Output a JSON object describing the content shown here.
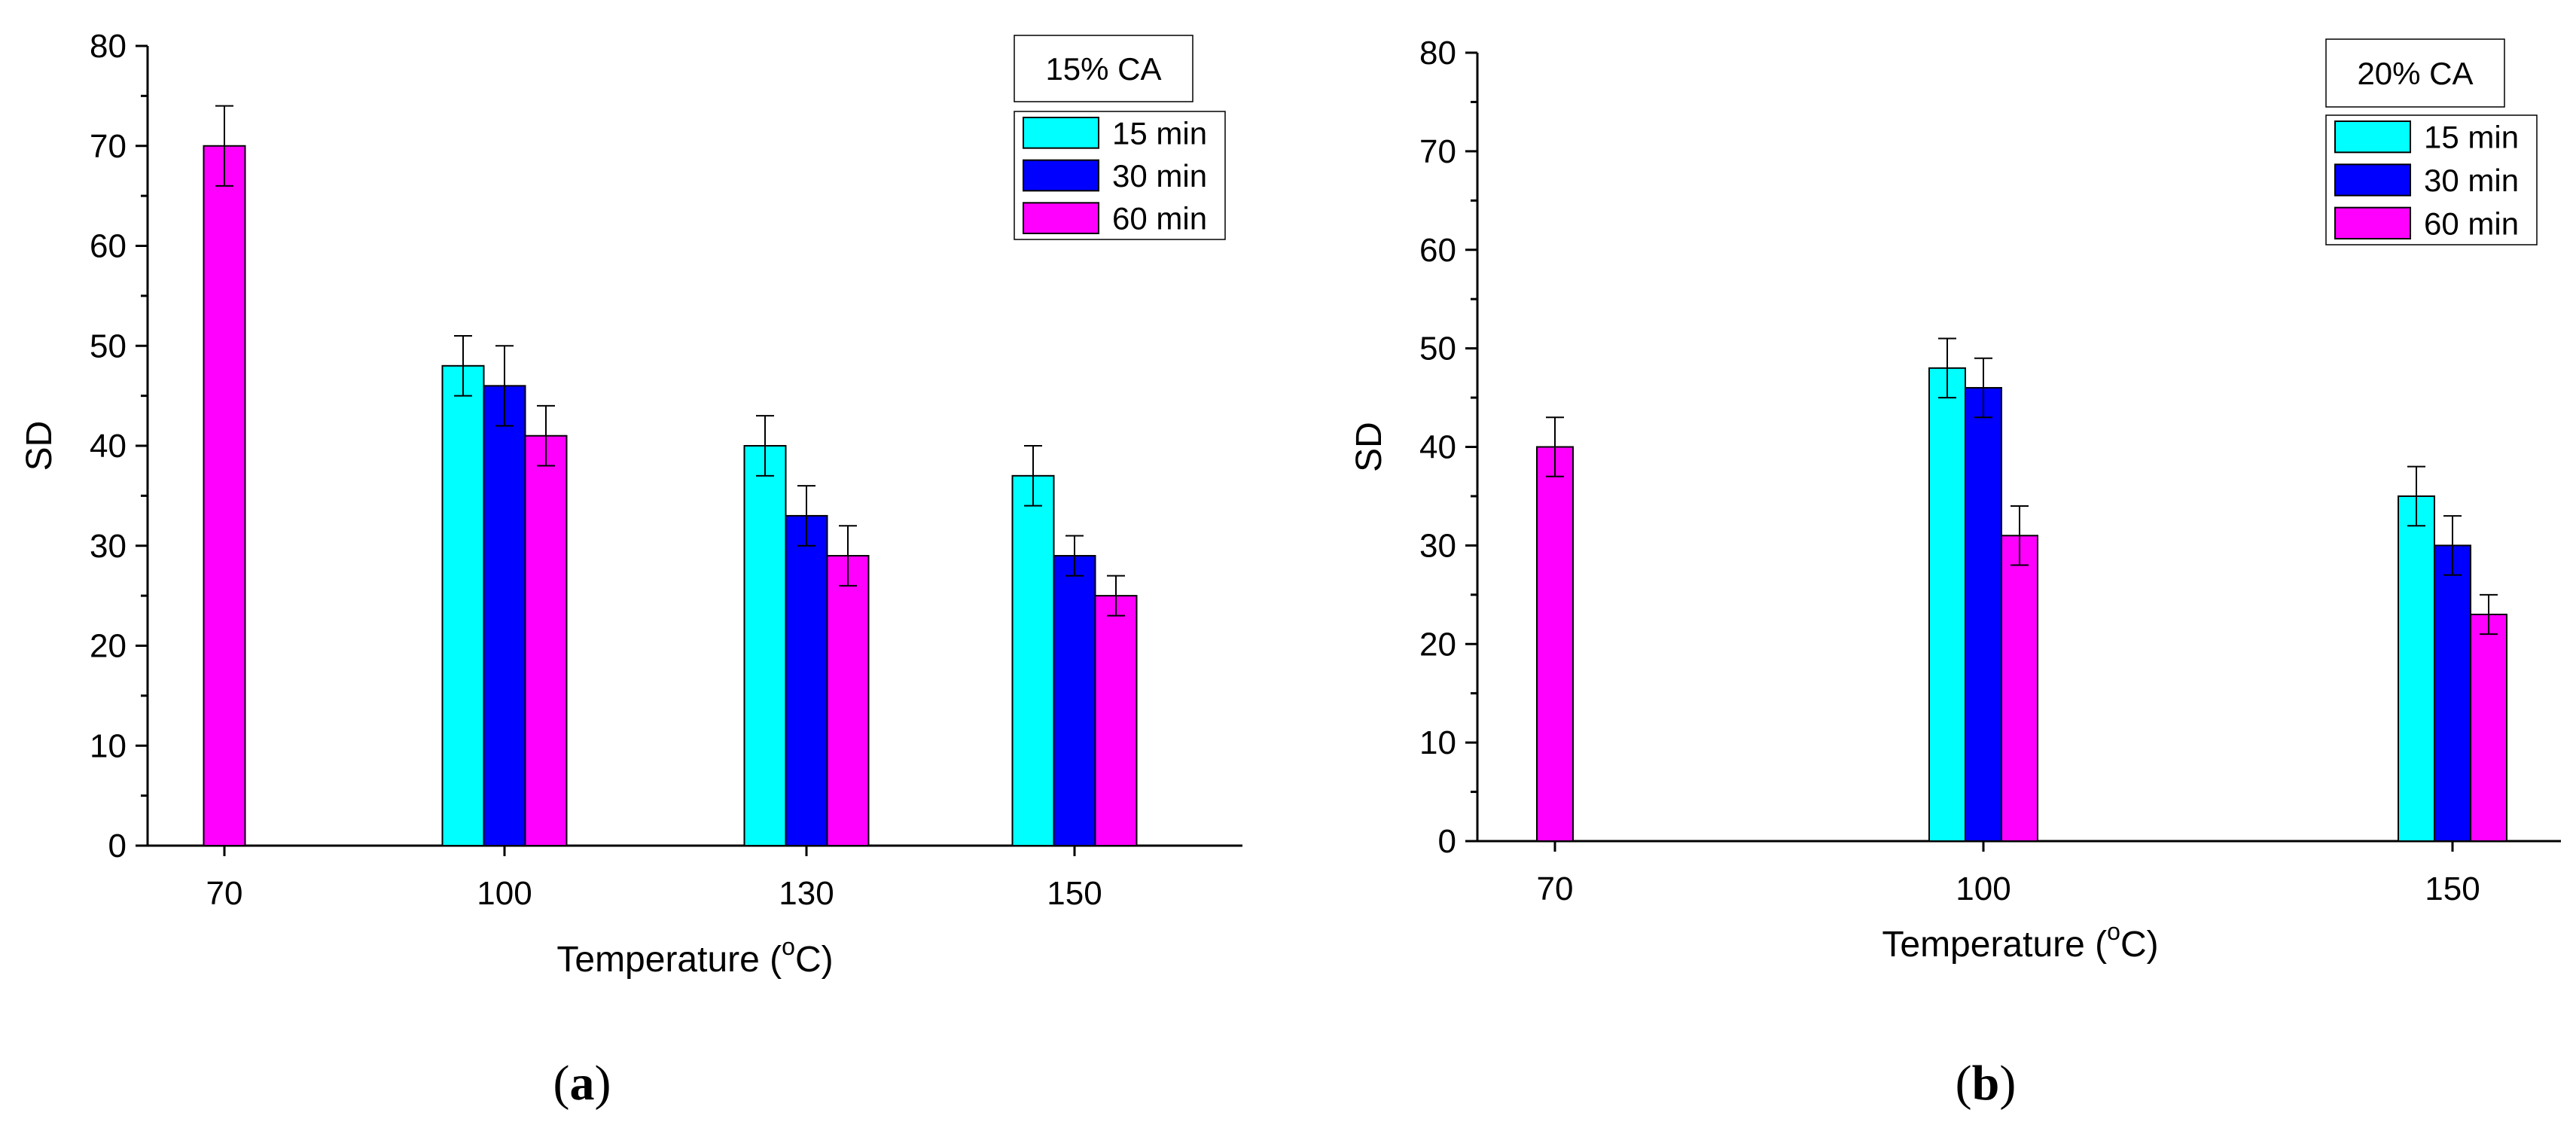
{
  "colors": {
    "15 min": "#00ffff",
    "30 min": "#0000ff",
    "60 min": "#ff00ff"
  },
  "panels": [
    {
      "label_open": "(",
      "label_letter": "a",
      "label_close": ")"
    },
    {
      "label_open": "(",
      "label_letter": "b",
      "label_close": ")"
    }
  ],
  "chart_data": [
    {
      "type": "bar",
      "title": "15% CA",
      "xlabel": "Temperature (°C)",
      "xlabel_main": "Temperature (",
      "xlabel_sup": "o",
      "xlabel_end": "C)",
      "ylabel": "SD",
      "ylim": [
        0,
        80
      ],
      "yticks": [
        0,
        10,
        20,
        30,
        40,
        50,
        60,
        70,
        80
      ],
      "categories": [
        "70",
        "100",
        "130",
        "150"
      ],
      "legend": [
        "15 min",
        "30 min",
        "60 min"
      ],
      "legend_position": "top-right",
      "series": [
        {
          "name": "15 min",
          "values": [
            null,
            48,
            40,
            37
          ],
          "errors": [
            null,
            3,
            3,
            3
          ]
        },
        {
          "name": "30 min",
          "values": [
            null,
            46,
            33,
            29
          ],
          "errors": [
            null,
            4,
            3,
            2
          ]
        },
        {
          "name": "60 min",
          "values": [
            70,
            41,
            29,
            25
          ],
          "errors": [
            4,
            3,
            3,
            2
          ]
        }
      ]
    },
    {
      "type": "bar",
      "title": "20% CA",
      "xlabel": "Temperature (°C)",
      "xlabel_main": "Temperature (",
      "xlabel_sup": "o",
      "xlabel_end": "C)",
      "ylabel": "SD",
      "ylim": [
        0,
        80
      ],
      "yticks": [
        0,
        10,
        20,
        30,
        40,
        50,
        60,
        70,
        80
      ],
      "categories": [
        "70",
        "100",
        "150"
      ],
      "legend": [
        "15 min",
        "30 min",
        "60 min"
      ],
      "legend_position": "top-right",
      "series": [
        {
          "name": "15 min",
          "values": [
            null,
            48,
            35
          ],
          "errors": [
            null,
            3,
            3
          ]
        },
        {
          "name": "30 min",
          "values": [
            null,
            46,
            30
          ],
          "errors": [
            null,
            3,
            3
          ]
        },
        {
          "name": "60 min",
          "values": [
            40,
            31,
            23
          ],
          "errors": [
            3,
            3,
            2
          ]
        }
      ]
    }
  ]
}
